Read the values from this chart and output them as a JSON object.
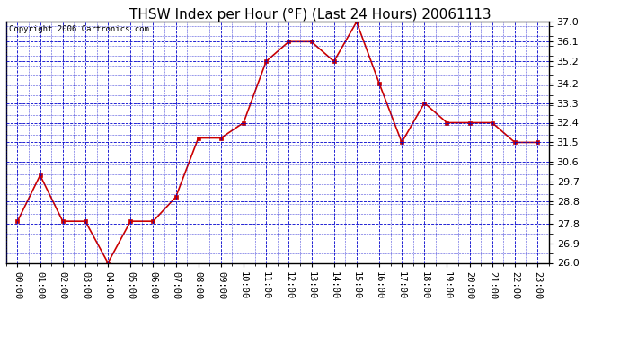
{
  "title": "THSW Index per Hour (°F) (Last 24 Hours) 20061113",
  "copyright_text": "Copyright 2006 Cartronics.com",
  "hours": [
    "00:00",
    "01:00",
    "02:00",
    "03:00",
    "04:00",
    "05:00",
    "06:00",
    "07:00",
    "08:00",
    "09:00",
    "10:00",
    "11:00",
    "12:00",
    "13:00",
    "14:00",
    "15:00",
    "16:00",
    "17:00",
    "18:00",
    "19:00",
    "20:00",
    "21:00",
    "22:00",
    "23:00"
  ],
  "values": [
    27.9,
    30.0,
    27.9,
    27.9,
    26.0,
    27.9,
    27.9,
    29.0,
    31.7,
    31.7,
    32.4,
    35.2,
    36.1,
    36.1,
    35.2,
    37.0,
    34.2,
    31.5,
    33.3,
    32.4,
    32.4,
    32.4,
    31.5,
    31.5
  ],
  "ylim_min": 26.0,
  "ylim_max": 37.0,
  "yticks": [
    26.0,
    26.9,
    27.8,
    28.8,
    29.7,
    30.6,
    31.5,
    32.4,
    33.3,
    34.2,
    35.2,
    36.1,
    37.0
  ],
  "line_color": "#cc0000",
  "marker_color": "#000000",
  "bg_color": "#ffffff",
  "plot_bg_color": "#ffffff",
  "grid_color": "#0000cc",
  "title_color": "#000000",
  "title_fontsize": 11,
  "copyright_fontsize": 6.5,
  "tick_fontsize": 7.5,
  "ytick_fontsize": 8
}
